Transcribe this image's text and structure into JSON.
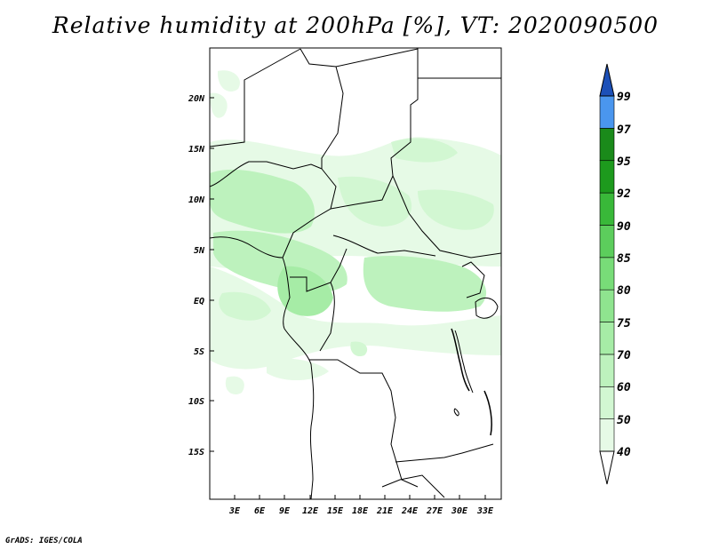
{
  "title": "Relative humidity at 200hPa [%], VT: 2020090500",
  "credit": "GrADS: IGES/COLA",
  "map": {
    "lat_labels": [
      "20N",
      "15N",
      "10N",
      "5N",
      "EQ",
      "5S",
      "10S",
      "15S"
    ],
    "lon_labels": [
      "3E",
      "6E",
      "9E",
      "12E",
      "15E",
      "18E",
      "21E",
      "24E",
      "27E",
      "30E",
      "33E"
    ],
    "lon_range": [
      0,
      35
    ],
    "lat_range": [
      -20,
      24
    ]
  },
  "colorbar": {
    "labels": [
      "40",
      "50",
      "60",
      "70",
      "75",
      "80",
      "85",
      "90",
      "92",
      "95",
      "97",
      "99"
    ],
    "colors": [
      "#e6fae6",
      "#d2f7d2",
      "#bdf2bd",
      "#a6eca6",
      "#8fe48f",
      "#78dc78",
      "#5ccd5c",
      "#39b839",
      "#1d9a1d",
      "#1a8a1a",
      "#4a96ee",
      "#2468d8",
      "#1c50b8"
    ]
  }
}
